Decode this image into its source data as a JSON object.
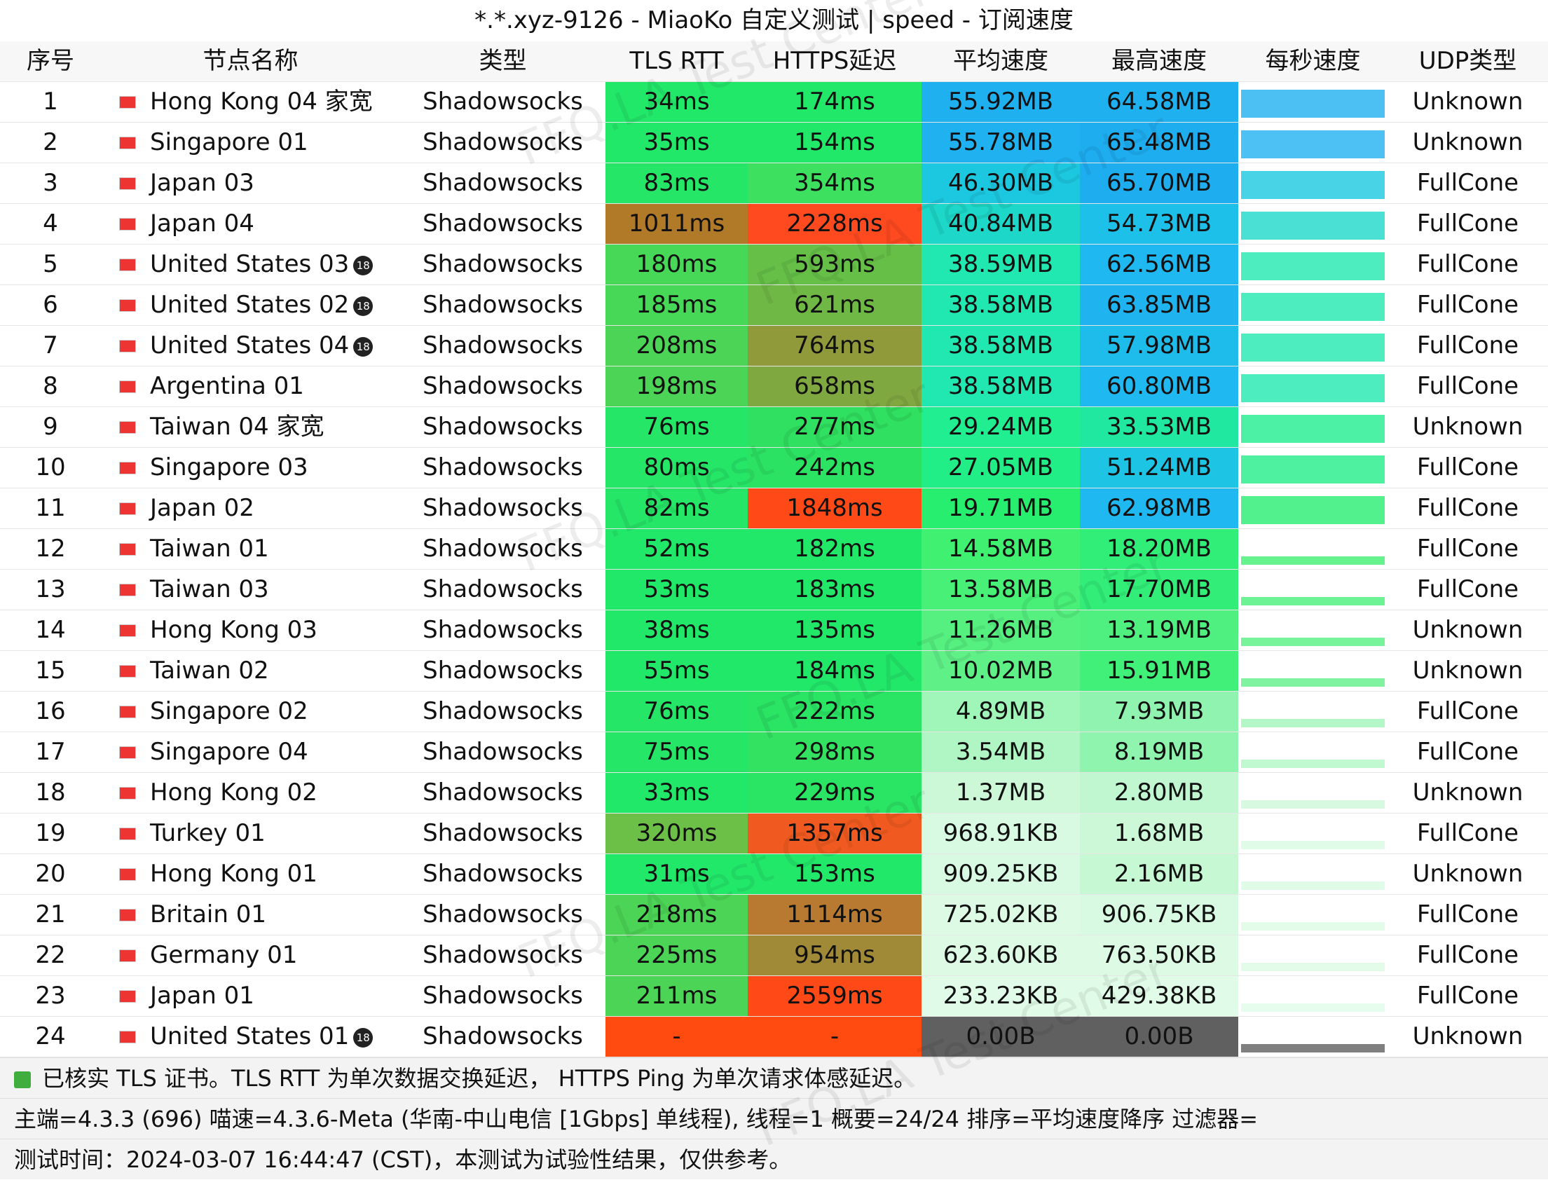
{
  "title": "*.*.xyz-9126 - MiaoKo 自定义测试 | speed - 订阅速度",
  "watermark": "FFQ.LA Test Center",
  "headers": [
    "序号",
    "节点名称",
    "类型",
    "TLS RTT",
    "HTTPS延迟",
    "平均速度",
    "最高速度",
    "每秒速度",
    "UDP类型"
  ],
  "rows": [
    {
      "no": 1,
      "name": "Hong Kong 04 家宽",
      "type": "Shadowsocks",
      "tls": "34ms",
      "https": "174ms",
      "avg": "55.92MB",
      "max": "64.58MB",
      "udp": "Unknown",
      "colors": [
        "#22e86a",
        "#22e86a",
        "#1fb0f0",
        "#1fb0f0"
      ]
    },
    {
      "no": 2,
      "name": "Singapore 01",
      "type": "Shadowsocks",
      "tls": "35ms",
      "https": "154ms",
      "avg": "55.78MB",
      "max": "65.48MB",
      "udp": "Unknown",
      "colors": [
        "#22e86a",
        "#22e86a",
        "#20b2f0",
        "#1eaef0"
      ]
    },
    {
      "no": 3,
      "name": "Japan 03",
      "type": "Shadowsocks",
      "tls": "83ms",
      "https": "354ms",
      "avg": "46.30MB",
      "max": "65.70MB",
      "udp": "FullCone",
      "colors": [
        "#26e668",
        "#3ee060",
        "#1cc8e0",
        "#1eaef0"
      ]
    },
    {
      "no": 4,
      "name": "Japan 04",
      "type": "Shadowsocks",
      "tls": "1011ms",
      "https": "2228ms",
      "avg": "40.84MB",
      "max": "54.73MB",
      "udp": "FullCone",
      "colors": [
        "#b07a28",
        "#ff4a20",
        "#1dd8c8",
        "#1cc0e8"
      ]
    },
    {
      "no": 5,
      "name": "United States 03",
      "badge": "18",
      "type": "Shadowsocks",
      "tls": "180ms",
      "https": "593ms",
      "avg": "38.59MB",
      "max": "62.56MB",
      "udp": "FullCone",
      "colors": [
        "#48d858",
        "#66c048",
        "#20e8b0",
        "#20b8f0"
      ]
    },
    {
      "no": 6,
      "name": "United States 02",
      "badge": "18",
      "type": "Shadowsocks",
      "tls": "185ms",
      "https": "621ms",
      "avg": "38.58MB",
      "max": "63.85MB",
      "udp": "FullCone",
      "colors": [
        "#48d858",
        "#70b845",
        "#20e8b0",
        "#1fb4f0"
      ]
    },
    {
      "no": 7,
      "name": "United States 04",
      "badge": "18",
      "type": "Shadowsocks",
      "tls": "208ms",
      "https": "764ms",
      "avg": "38.58MB",
      "max": "57.98MB",
      "udp": "FullCone",
      "colors": [
        "#4cd456",
        "#909a3a",
        "#20e8b0",
        "#1ebcea"
      ]
    },
    {
      "no": 8,
      "name": "Argentina 01",
      "type": "Shadowsocks",
      "tls": "198ms",
      "https": "658ms",
      "avg": "38.58MB",
      "max": "60.80MB",
      "udp": "FullCone",
      "colors": [
        "#4cd456",
        "#80a840",
        "#20e8b0",
        "#20b8f0"
      ]
    },
    {
      "no": 9,
      "name": "Taiwan 04 家宽",
      "type": "Shadowsocks",
      "tls": "76ms",
      "https": "277ms",
      "avg": "29.24MB",
      "max": "33.53MB",
      "udp": "Unknown",
      "colors": [
        "#26e668",
        "#30e060",
        "#20ee90",
        "#20e8a0"
      ]
    },
    {
      "no": 10,
      "name": "Singapore 03",
      "type": "Shadowsocks",
      "tls": "80ms",
      "https": "242ms",
      "avg": "27.05MB",
      "max": "51.24MB",
      "udp": "FullCone",
      "colors": [
        "#26e668",
        "#2ce262",
        "#22ee88",
        "#1ec4e4"
      ]
    },
    {
      "no": 11,
      "name": "Japan 02",
      "type": "Shadowsocks",
      "tls": "82ms",
      "https": "1848ms",
      "avg": "19.71MB",
      "max": "62.98MB",
      "udp": "FullCone",
      "colors": [
        "#26e668",
        "#ff4a18",
        "#28ee70",
        "#20b8f0"
      ]
    },
    {
      "no": 12,
      "name": "Taiwan 01",
      "type": "Shadowsocks",
      "tls": "52ms",
      "https": "182ms",
      "avg": "14.58MB",
      "max": "18.20MB",
      "udp": "FullCone",
      "colors": [
        "#22e86a",
        "#22e86a",
        "#40f070",
        "#30ee78"
      ]
    },
    {
      "no": 13,
      "name": "Taiwan 03",
      "type": "Shadowsocks",
      "tls": "53ms",
      "https": "183ms",
      "avg": "13.58MB",
      "max": "17.70MB",
      "udp": "FullCone",
      "colors": [
        "#22e86a",
        "#22e86a",
        "#48f078",
        "#32ee78"
      ]
    },
    {
      "no": 14,
      "name": "Hong Kong 03",
      "type": "Shadowsocks",
      "tls": "38ms",
      "https": "135ms",
      "avg": "11.26MB",
      "max": "13.19MB",
      "udp": "Unknown",
      "colors": [
        "#22e86a",
        "#22e86a",
        "#55f080",
        "#50f080"
      ]
    },
    {
      "no": 15,
      "name": "Taiwan 02",
      "type": "Shadowsocks",
      "tls": "55ms",
      "https": "184ms",
      "avg": "10.02MB",
      "max": "15.91MB",
      "udp": "Unknown",
      "colors": [
        "#22e86a",
        "#22e86a",
        "#60f088",
        "#40f078"
      ]
    },
    {
      "no": 16,
      "name": "Singapore 02",
      "type": "Shadowsocks",
      "tls": "76ms",
      "https": "222ms",
      "avg": "4.89MB",
      "max": "7.93MB",
      "udp": "FullCone",
      "colors": [
        "#26e668",
        "#2ae464",
        "#a0f5b8",
        "#90f4b0"
      ]
    },
    {
      "no": 17,
      "name": "Singapore 04",
      "type": "Shadowsocks",
      "tls": "75ms",
      "https": "298ms",
      "avg": "3.54MB",
      "max": "8.19MB",
      "udp": "FullCone",
      "colors": [
        "#26e668",
        "#32e260",
        "#b0f6c4",
        "#8ef4ae"
      ]
    },
    {
      "no": 18,
      "name": "Hong Kong 02",
      "type": "Shadowsocks",
      "tls": "33ms",
      "https": "229ms",
      "avg": "1.37MB",
      "max": "2.80MB",
      "udp": "Unknown",
      "colors": [
        "#22e86a",
        "#2ae464",
        "#ccf8d8",
        "#c0f7d0"
      ]
    },
    {
      "no": 19,
      "name": "Turkey 01",
      "type": "Shadowsocks",
      "tls": "320ms",
      "https": "1357ms",
      "avg": "968.91KB",
      "max": "1.68MB",
      "udp": "FullCone",
      "colors": [
        "#6cc048",
        "#f05a20",
        "#d8fae2",
        "#ccf8d8"
      ]
    },
    {
      "no": 20,
      "name": "Hong Kong 01",
      "type": "Shadowsocks",
      "tls": "31ms",
      "https": "153ms",
      "avg": "909.25KB",
      "max": "2.16MB",
      "udp": "Unknown",
      "colors": [
        "#22e86a",
        "#22e86a",
        "#d8fae2",
        "#c6f8d4"
      ]
    },
    {
      "no": 21,
      "name": "Britain 01",
      "type": "Shadowsocks",
      "tls": "218ms",
      "https": "1114ms",
      "avg": "725.02KB",
      "max": "906.75KB",
      "udp": "FullCone",
      "colors": [
        "#4cd456",
        "#b87a30",
        "#dcfae4",
        "#d8fae2"
      ]
    },
    {
      "no": 22,
      "name": "Germany 01",
      "type": "Shadowsocks",
      "tls": "225ms",
      "https": "954ms",
      "avg": "623.60KB",
      "max": "763.50KB",
      "udp": "FullCone",
      "colors": [
        "#4cd456",
        "#a08a38",
        "#dcfae4",
        "#dcfae4"
      ]
    },
    {
      "no": 23,
      "name": "Japan 01",
      "type": "Shadowsocks",
      "tls": "211ms",
      "https": "2559ms",
      "avg": "233.23KB",
      "max": "429.38KB",
      "udp": "FullCone",
      "colors": [
        "#4cd456",
        "#ff4a18",
        "#e0fbe8",
        "#e0fbe8"
      ]
    },
    {
      "no": 24,
      "name": "United States 01",
      "badge": "18",
      "type": "Shadowsocks",
      "tls": "-",
      "https": "-",
      "avg": "0.00B",
      "max": "0.00B",
      "udp": "Unknown",
      "colors": [
        "#ff4a10",
        "#ff4a10",
        "#606060",
        "#606060"
      ]
    }
  ],
  "footer": [
    "已核实 TLS 证书。TLS RTT 为单次数据交换延迟， HTTPS Ping 为单次请求体感延迟。",
    "主端=4.3.3 (696) 喵速=4.3.6-Meta (华南-中山电信 [1Gbps] 单线程), 线程=1 概要=24/24 排序=平均速度降序 过滤器=",
    "测试时间：2024-03-07 16:44:47 (CST)，本测试为试验性结果，仅供参考。"
  ]
}
